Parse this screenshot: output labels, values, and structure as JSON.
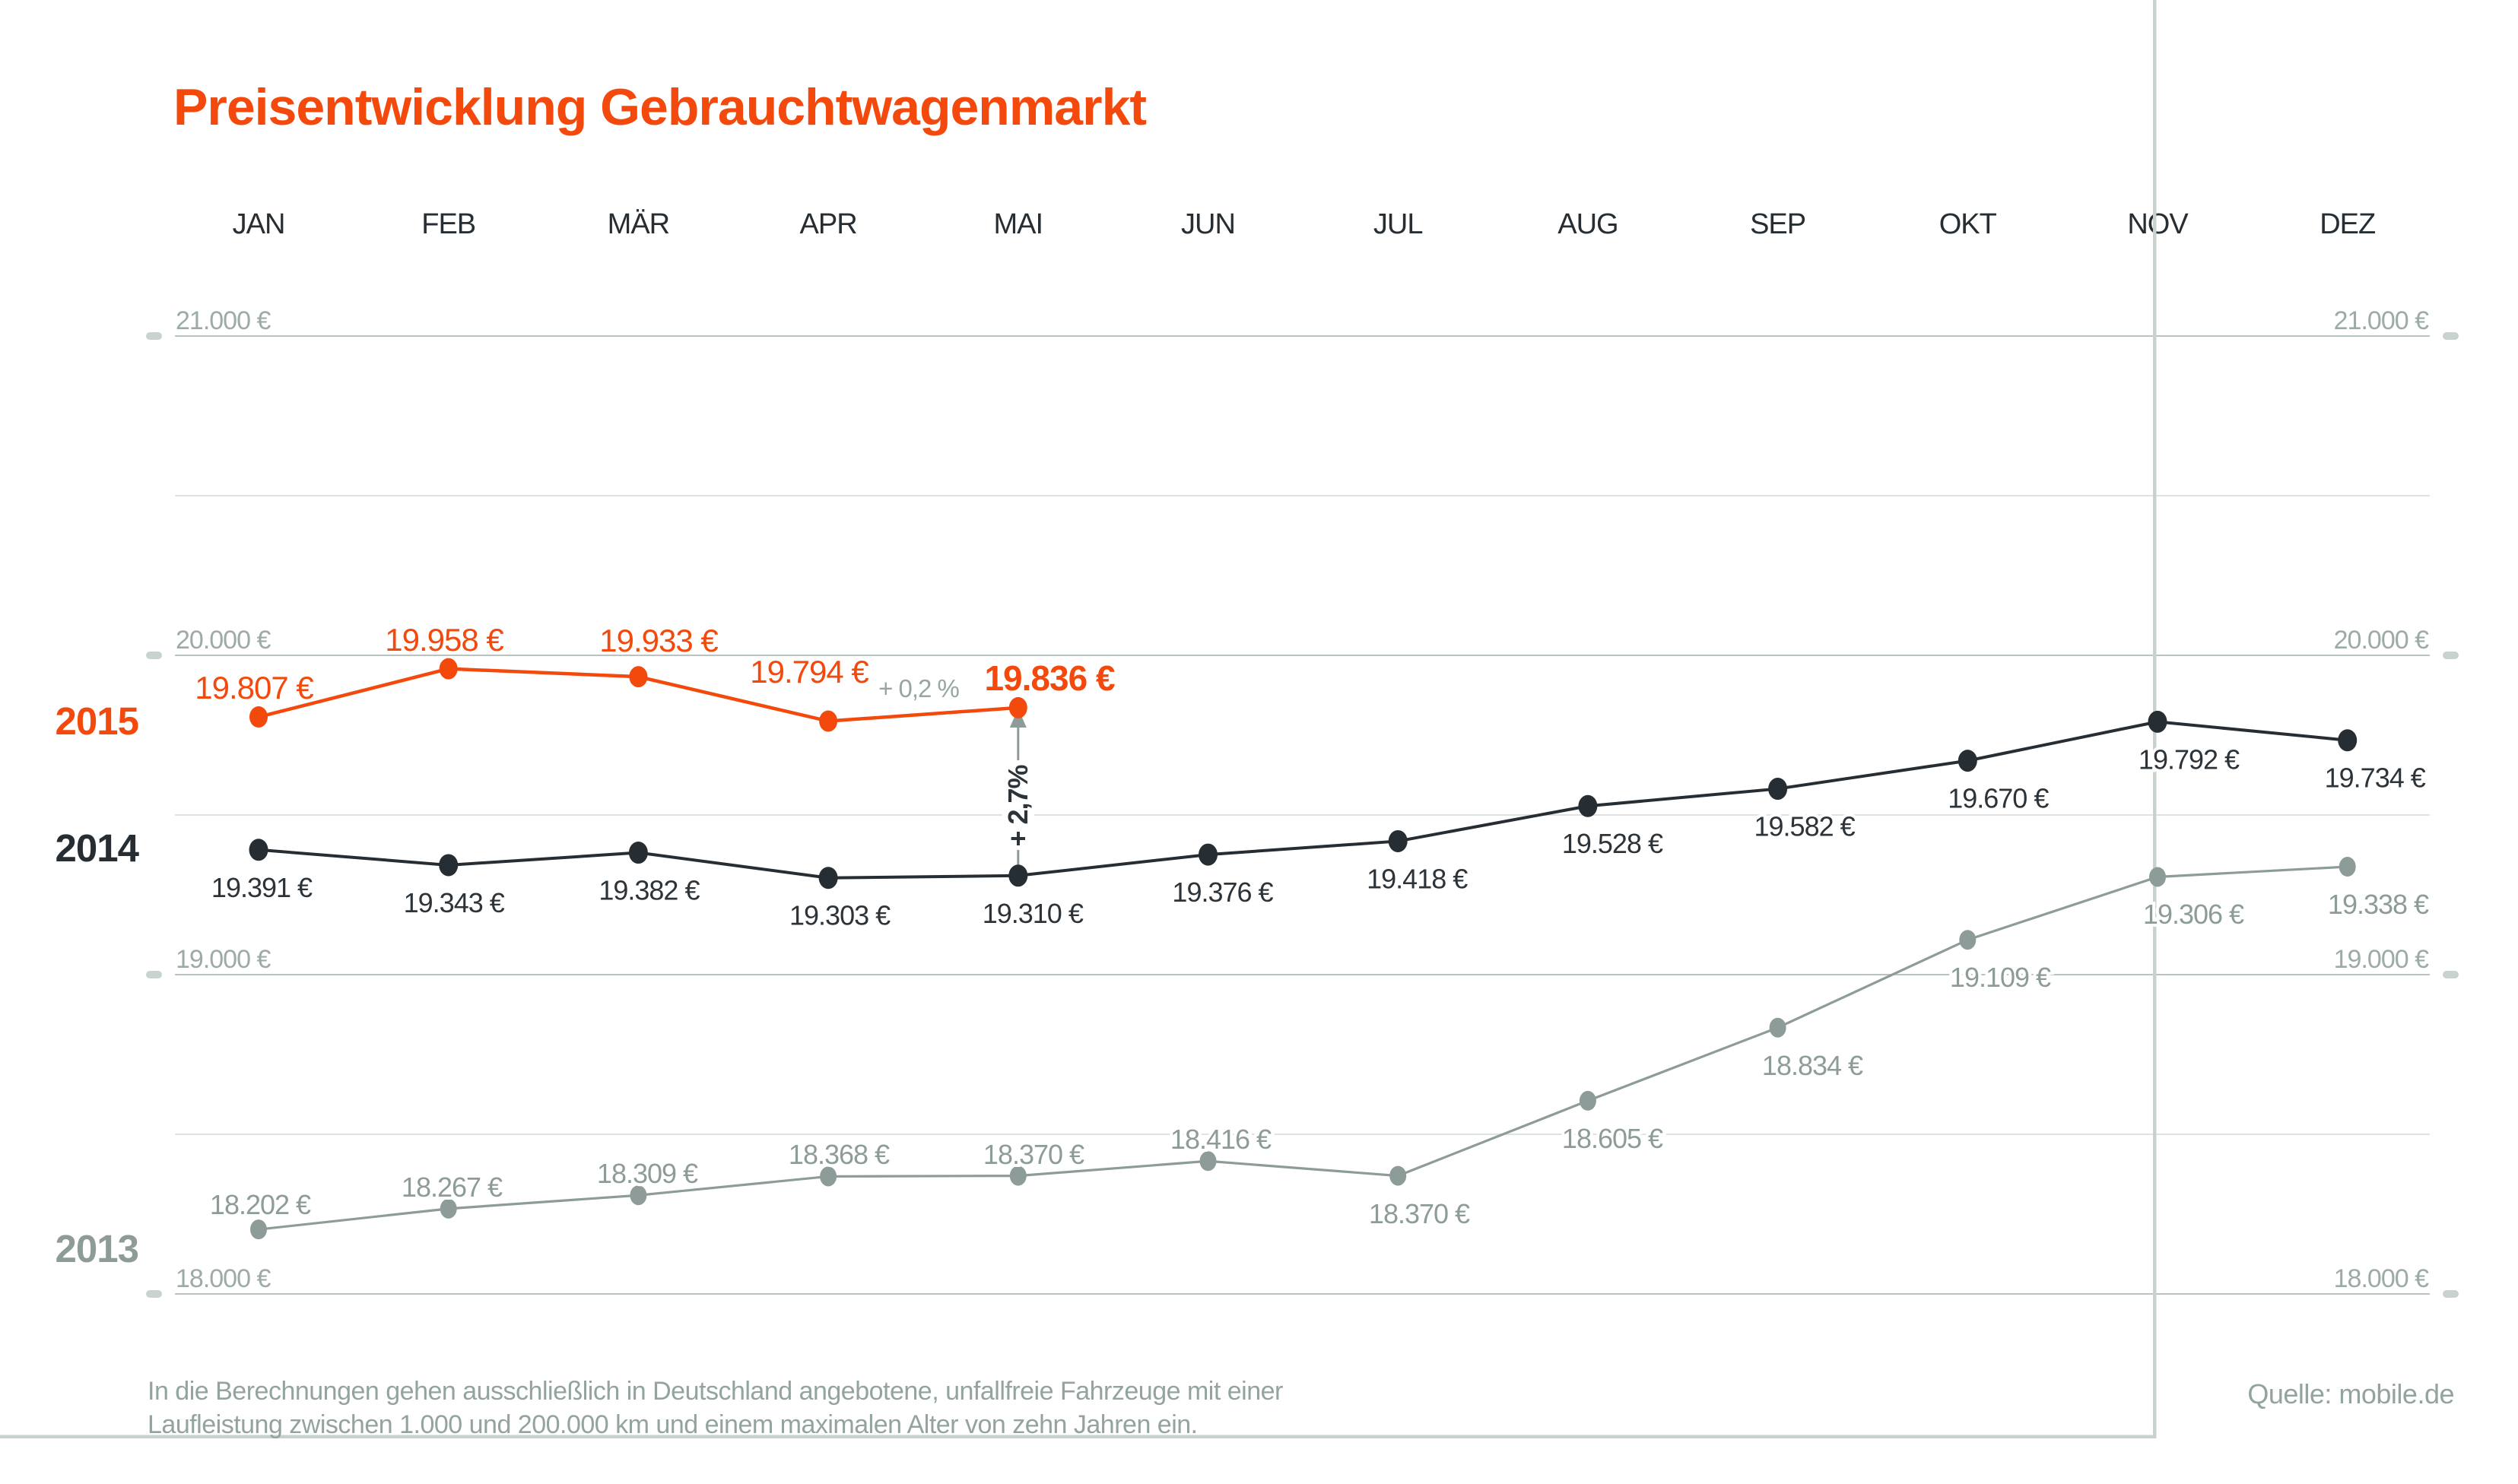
{
  "chart_data": {
    "type": "line",
    "title": "Preisentwicklung Gebrauchtwagenmarkt",
    "categories": [
      "JAN",
      "FEB",
      "MÄR",
      "APR",
      "MAI",
      "JUN",
      "JUL",
      "AUG",
      "SEP",
      "OKT",
      "NOV",
      "DEZ"
    ],
    "y_axis": {
      "ticks": [
        {
          "label": "21.000 €",
          "value": 21000
        },
        {
          "label": "20.000 €",
          "value": 20000
        },
        {
          "label": "19.000 €",
          "value": 19000
        },
        {
          "label": "18.000 €",
          "value": 18000
        }
      ],
      "minor_values": [
        20500,
        19500,
        18500
      ],
      "ylim": [
        17800,
        21200
      ],
      "unit": "EUR",
      "labels_on_both_sides": true
    },
    "series": [
      {
        "name": "2015",
        "color": "#f4490c",
        "values": [
          19807,
          19958,
          19933,
          19794,
          19836
        ],
        "labels": [
          "19.807 €",
          "19.958 €",
          "19.933 €",
          "19.794 €",
          "19.836 €"
        ]
      },
      {
        "name": "2014",
        "color": "#262d33",
        "values": [
          19391,
          19343,
          19382,
          19303,
          19310,
          19376,
          19418,
          19528,
          19582,
          19670,
          19792,
          19734
        ],
        "labels": [
          "19.391 €",
          "19.343 €",
          "19.382 €",
          "19.303 €",
          "19.310 €",
          "19.376 €",
          "19.418 €",
          "19.528 €",
          "19.582 €",
          "19.670 €",
          "19.792 €",
          "19.734 €"
        ]
      },
      {
        "name": "2013",
        "color": "#8d9c98",
        "values": [
          18202,
          18267,
          18309,
          18368,
          18370,
          18416,
          18370,
          18605,
          18834,
          19109,
          19306,
          19338
        ],
        "labels": [
          "18.202 €",
          "18.267 €",
          "18.309 €",
          "18.368 €",
          "18.370 €",
          "18.416 €",
          "18.370 €",
          "18.605 €",
          "18.834 €",
          "19.109 €",
          "19.306 €",
          "19.338 €"
        ]
      }
    ],
    "annotations": {
      "apr_change": "+ 0,2 %",
      "mai_change": "+ 2,7%"
    },
    "legend_position": "left-of-lines",
    "grid": true
  },
  "footer": {
    "line1": "In die Berechnungen gehen ausschließlich in Deutschland angebotene, unfallfreie Fahrzeuge mit einer",
    "line2": "Laufleistung zwischen 1.000 und 200.000 km und einem maximalen Alter von zehn Jahren ein.",
    "source": "Quelle: mobile.de"
  }
}
